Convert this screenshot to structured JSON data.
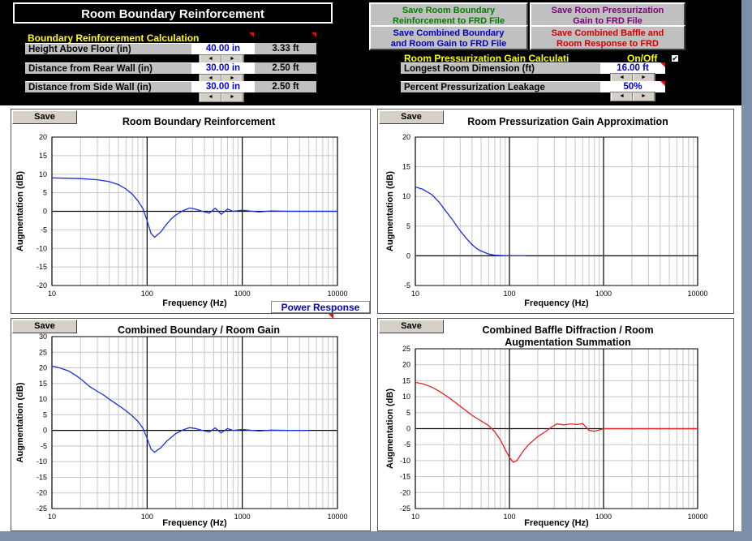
{
  "header": {
    "title": "Room Boundary Reinforcement"
  },
  "boundary": {
    "section_title": "Boundary Reinforcement Calculation",
    "rows": [
      {
        "label": "Height Above Floor (in)",
        "value": "40.00 in",
        "feet": "3.33 ft"
      },
      {
        "label": "Distance from Rear Wall (in)",
        "value": "30.00 in",
        "feet": "2.50 ft"
      },
      {
        "label": "Distance from Side Wall (in)",
        "value": "30.00 in",
        "feet": "2.50 ft"
      }
    ]
  },
  "pressurization": {
    "section_title": "Room Pressurization Gain Calculati",
    "onoff_label": "On/Off",
    "onoff_checked": "✔",
    "rows": [
      {
        "label": "Longest Room Dimension (ft)",
        "value": "16.00 ft"
      },
      {
        "label": "Percent Pressurization Leakage",
        "value": "50%"
      }
    ]
  },
  "buttons": {
    "save_boundary": "Save Room Boundary\nReinforcement to FRD File",
    "save_pressurization": "Save Room Pressurization\nGain to FRD File",
    "save_combined": "Save Combined Boundary\nand Room Gain to FRD File",
    "save_combined_baffle": "Save Combined Baffle and\nRoom Response to FRD",
    "save": "Save",
    "power_response": "Power Response",
    "spin_left": "◄",
    "spin_right": "►"
  },
  "colors": {
    "green": "#008000",
    "purple": "#800080",
    "blue": "#0000c0",
    "red": "#d00000",
    "curve_blue": "#1a2fe0",
    "curve_red": "#e82020"
  },
  "chart_data": [
    {
      "type": "line",
      "title": "Room Boundary Reinforcement",
      "xlabel": "Frequency (Hz)",
      "ylabel": "Augmentation (dB)",
      "xscale": "log",
      "xlim": [
        10,
        10000
      ],
      "ylim": [
        -20,
        20
      ],
      "yticks": [
        -20,
        -15,
        -10,
        -5,
        0,
        5,
        10,
        15,
        20
      ],
      "xticks": [
        10,
        100,
        1000,
        10000
      ],
      "series": [
        {
          "color": "#1a2fe0",
          "x": [
            10,
            20,
            30,
            40,
            50,
            60,
            70,
            80,
            90,
            100,
            110,
            120,
            140,
            160,
            180,
            200,
            240,
            280,
            320,
            380,
            450,
            520,
            600,
            700,
            800,
            1000,
            1500,
            2000,
            3000,
            5000,
            10000
          ],
          "y": [
            9,
            8.8,
            8.5,
            8,
            7.2,
            6,
            4.6,
            2.8,
            0.8,
            -2.5,
            -6,
            -7,
            -5.5,
            -3.5,
            -2,
            -1,
            0.2,
            0.9,
            0.6,
            0,
            -0.5,
            0.8,
            -0.8,
            0.6,
            0,
            0.3,
            -0.2,
            0.1,
            0,
            0,
            0
          ]
        }
      ]
    },
    {
      "type": "line",
      "title": "Room Pressurization Gain Approximation",
      "xlabel": "Frequency (Hz)",
      "ylabel": "Augmentation (dB)",
      "xscale": "log",
      "xlim": [
        10,
        10000
      ],
      "ylim": [
        -5,
        20
      ],
      "yticks": [
        -5,
        0,
        5,
        10,
        15,
        20
      ],
      "xticks": [
        10,
        100,
        1000,
        10000
      ],
      "series": [
        {
          "color": "#1a2fe0",
          "x": [
            10,
            12,
            15,
            18,
            20,
            25,
            30,
            35,
            40,
            45,
            50,
            60,
            70,
            80,
            100,
            120,
            150
          ],
          "y": [
            11.6,
            11.2,
            10.3,
            9,
            8,
            6,
            4.2,
            2.9,
            1.9,
            1.2,
            0.8,
            0.3,
            0.1,
            0.05,
            0,
            0,
            0
          ]
        }
      ]
    },
    {
      "type": "line",
      "title": "Combined Boundary / Room Gain",
      "xlabel": "Frequency (Hz)",
      "ylabel": "Augmentation (dB)",
      "xscale": "log",
      "xlim": [
        10,
        10000
      ],
      "ylim": [
        -25,
        30
      ],
      "yticks": [
        -25,
        -20,
        -15,
        -10,
        -5,
        0,
        5,
        10,
        15,
        20,
        25,
        30
      ],
      "xticks": [
        10,
        100,
        1000,
        10000
      ],
      "series": [
        {
          "color": "#1a2fe0",
          "x": [
            10,
            12,
            15,
            18,
            20,
            25,
            30,
            35,
            40,
            50,
            60,
            70,
            80,
            90,
            100,
            110,
            120,
            140,
            160,
            200,
            240,
            280,
            320,
            380,
            450,
            520,
            600,
            700,
            800,
            1000,
            1500,
            2000,
            3000,
            4000,
            5000
          ],
          "y": [
            20.6,
            20,
            19,
            17.5,
            16.5,
            14,
            12.5,
            11.3,
            10,
            8,
            6.3,
            4.6,
            2.9,
            0.8,
            -2.5,
            -6,
            -7,
            -5.5,
            -3.5,
            -1,
            0.2,
            0.9,
            0.6,
            0,
            -0.5,
            0.8,
            -0.8,
            0.6,
            0,
            0.3,
            -0.2,
            0.1,
            0,
            0,
            0
          ]
        }
      ]
    },
    {
      "type": "line",
      "title": "Combined Baffle Diffraction / Room\nAugmentation Summation",
      "xlabel": "Frequency (Hz)",
      "ylabel": "Augmentation (dB)",
      "xscale": "log",
      "xlim": [
        10,
        10000
      ],
      "ylim": [
        -25,
        25
      ],
      "yticks": [
        -25,
        -20,
        -15,
        -10,
        -5,
        0,
        5,
        10,
        15,
        20,
        25
      ],
      "xticks": [
        10,
        100,
        1000,
        10000
      ],
      "series": [
        {
          "color": "#e82020",
          "x": [
            10,
            12,
            15,
            18,
            20,
            25,
            30,
            35,
            40,
            50,
            60,
            70,
            80,
            90,
            100,
            110,
            120,
            140,
            160,
            200,
            240,
            280,
            320,
            380,
            450,
            520,
            600,
            700,
            800,
            1000,
            2000,
            5000,
            10000
          ],
          "y": [
            14.5,
            14,
            13,
            11.7,
            10.8,
            8.8,
            7,
            5.5,
            4.2,
            2.4,
            1,
            -1,
            -3.5,
            -6.5,
            -9,
            -10.5,
            -10,
            -7,
            -5,
            -2.5,
            -1,
            0.5,
            1.5,
            1.2,
            1.5,
            1.3,
            1.6,
            -0.5,
            -0.8,
            0,
            0,
            0,
            0
          ]
        }
      ]
    }
  ]
}
